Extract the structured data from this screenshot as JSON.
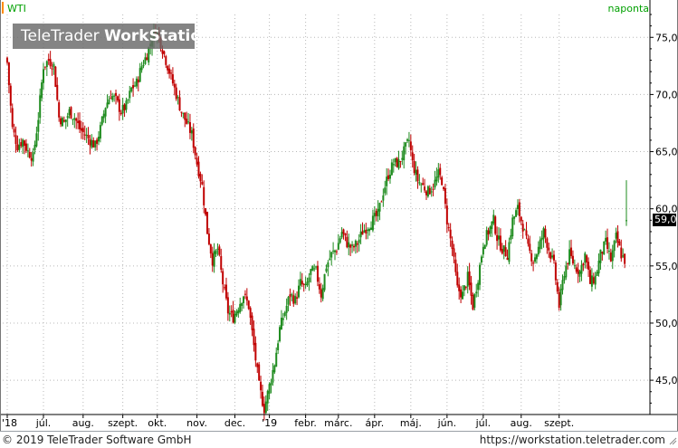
{
  "header": {
    "symbol": "WTI",
    "period": "naponta",
    "watermark_light": "TeleTrader ",
    "watermark_bold": "WorkStation"
  },
  "footer": {
    "copyright": "© 2019 TeleTrader Software GmbH",
    "url": "https://workstation.teletrader.com"
  },
  "last_price_label": "59,0",
  "colors": {
    "up": "#1e8b1e",
    "down": "#c00000",
    "grid": "#b8b8b8",
    "axis": "#000000",
    "accent": "#00a000"
  },
  "chart_data": {
    "type": "candlestick",
    "title": "",
    "ylim": [
      42,
      77
    ],
    "y_ticks": [
      {
        "value": 75,
        "label": "75,0"
      },
      {
        "value": 70,
        "label": "70,0"
      },
      {
        "value": 65,
        "label": "65,0"
      },
      {
        "value": 60,
        "label": "60,0"
      },
      {
        "value": 55,
        "label": "55,0"
      },
      {
        "value": 50,
        "label": "50,0"
      },
      {
        "value": 45,
        "label": "45,0"
      }
    ],
    "x_ticks": [
      {
        "label": "'18",
        "bar": 0
      },
      {
        "label": "júl.",
        "bar": 21
      },
      {
        "label": "aug.",
        "bar": 44
      },
      {
        "label": "szept.",
        "bar": 67
      },
      {
        "label": "okt.",
        "bar": 87
      },
      {
        "label": "nov.",
        "bar": 110
      },
      {
        "label": "dec.",
        "bar": 132
      },
      {
        "label": "'19",
        "bar": 152
      },
      {
        "label": "febr.",
        "bar": 173
      },
      {
        "label": "márc.",
        "bar": 192
      },
      {
        "label": "ápr.",
        "bar": 213
      },
      {
        "label": "máj.",
        "bar": 234
      },
      {
        "label": "jún.",
        "bar": 255
      },
      {
        "label": "júl.",
        "bar": 276
      },
      {
        "label": "aug.",
        "bar": 298
      },
      {
        "label": "szept.",
        "bar": 320
      }
    ],
    "close_anchors": [
      [
        0,
        72.8
      ],
      [
        3,
        67.0
      ],
      [
        6,
        65.5
      ],
      [
        9,
        66.0
      ],
      [
        12,
        65.0
      ],
      [
        15,
        64.5
      ],
      [
        18,
        68.0
      ],
      [
        21,
        72.5
      ],
      [
        24,
        73.0
      ],
      [
        27,
        72.5
      ],
      [
        30,
        68.0
      ],
      [
        33,
        67.5
      ],
      [
        36,
        68.5
      ],
      [
        39,
        68.0
      ],
      [
        42,
        67.0
      ],
      [
        45,
        66.5
      ],
      [
        48,
        66.0
      ],
      [
        51,
        65.5
      ],
      [
        54,
        67.0
      ],
      [
        57,
        69.0
      ],
      [
        60,
        70.0
      ],
      [
        63,
        69.5
      ],
      [
        66,
        68.5
      ],
      [
        69,
        69.0
      ],
      [
        72,
        70.5
      ],
      [
        75,
        71.0
      ],
      [
        78,
        72.5
      ],
      [
        81,
        73.5
      ],
      [
        84,
        75.0
      ],
      [
        86,
        75.8
      ],
      [
        88,
        75.0
      ],
      [
        90,
        74.0
      ],
      [
        92,
        73.0
      ],
      [
        95,
        71.5
      ],
      [
        98,
        70.0
      ],
      [
        101,
        68.5
      ],
      [
        104,
        67.5
      ],
      [
        107,
        66.5
      ],
      [
        110,
        64.0
      ],
      [
        113,
        62.0
      ],
      [
        116,
        58.0
      ],
      [
        119,
        55.5
      ],
      [
        122,
        56.5
      ],
      [
        125,
        53.5
      ],
      [
        128,
        51.0
      ],
      [
        131,
        50.5
      ],
      [
        134,
        51.5
      ],
      [
        137,
        52.5
      ],
      [
        140,
        51.5
      ],
      [
        143,
        48.0
      ],
      [
        146,
        44.5
      ],
      [
        149,
        42.5
      ],
      [
        152,
        44.5
      ],
      [
        155,
        46.5
      ],
      [
        158,
        49.5
      ],
      [
        161,
        51.0
      ],
      [
        164,
        52.5
      ],
      [
        167,
        52.0
      ],
      [
        170,
        53.5
      ],
      [
        173,
        53.0
      ],
      [
        176,
        54.5
      ],
      [
        179,
        54.5
      ],
      [
        182,
        52.5
      ],
      [
        185,
        55.0
      ],
      [
        188,
        56.0
      ],
      [
        191,
        56.5
      ],
      [
        194,
        58.0
      ],
      [
        197,
        57.0
      ],
      [
        200,
        56.5
      ],
      [
        203,
        57.0
      ],
      [
        206,
        58.0
      ],
      [
        209,
        58.5
      ],
      [
        212,
        59.0
      ],
      [
        215,
        59.5
      ],
      [
        218,
        61.5
      ],
      [
        221,
        63.0
      ],
      [
        224,
        64.0
      ],
      [
        227,
        64.0
      ],
      [
        230,
        65.0
      ],
      [
        233,
        66.0
      ],
      [
        235,
        64.0
      ],
      [
        238,
        62.5
      ],
      [
        241,
        62.0
      ],
      [
        244,
        61.5
      ],
      [
        247,
        62.0
      ],
      [
        250,
        63.0
      ],
      [
        252,
        62.5
      ],
      [
        255,
        59.0
      ],
      [
        258,
        56.5
      ],
      [
        261,
        53.0
      ],
      [
        264,
        52.5
      ],
      [
        267,
        54.0
      ],
      [
        270,
        51.5
      ],
      [
        273,
        54.0
      ],
      [
        276,
        57.0
      ],
      [
        279,
        58.0
      ],
      [
        282,
        59.0
      ],
      [
        284,
        57.5
      ],
      [
        287,
        56.5
      ],
      [
        290,
        56.0
      ],
      [
        293,
        59.0
      ],
      [
        296,
        60.0
      ],
      [
        299,
        58.5
      ],
      [
        302,
        56.5
      ],
      [
        305,
        55.5
      ],
      [
        308,
        56.5
      ],
      [
        311,
        58.0
      ],
      [
        314,
        56.5
      ],
      [
        317,
        55.0
      ],
      [
        320,
        51.5
      ],
      [
        323,
        54.5
      ],
      [
        326,
        56.0
      ],
      [
        329,
        55.0
      ],
      [
        332,
        54.5
      ],
      [
        335,
        56.0
      ],
      [
        338,
        53.5
      ],
      [
        341,
        54.0
      ],
      [
        344,
        56.0
      ],
      [
        347,
        57.0
      ],
      [
        350,
        55.5
      ],
      [
        353,
        57.5
      ],
      [
        356,
        56.0
      ],
      [
        358,
        55.5
      ],
      [
        359,
        59.0
      ]
    ],
    "last_bar": {
      "open": 59.0,
      "high": 62.5,
      "low": 58.5,
      "close": 59.0
    },
    "last_price": 59.0
  }
}
